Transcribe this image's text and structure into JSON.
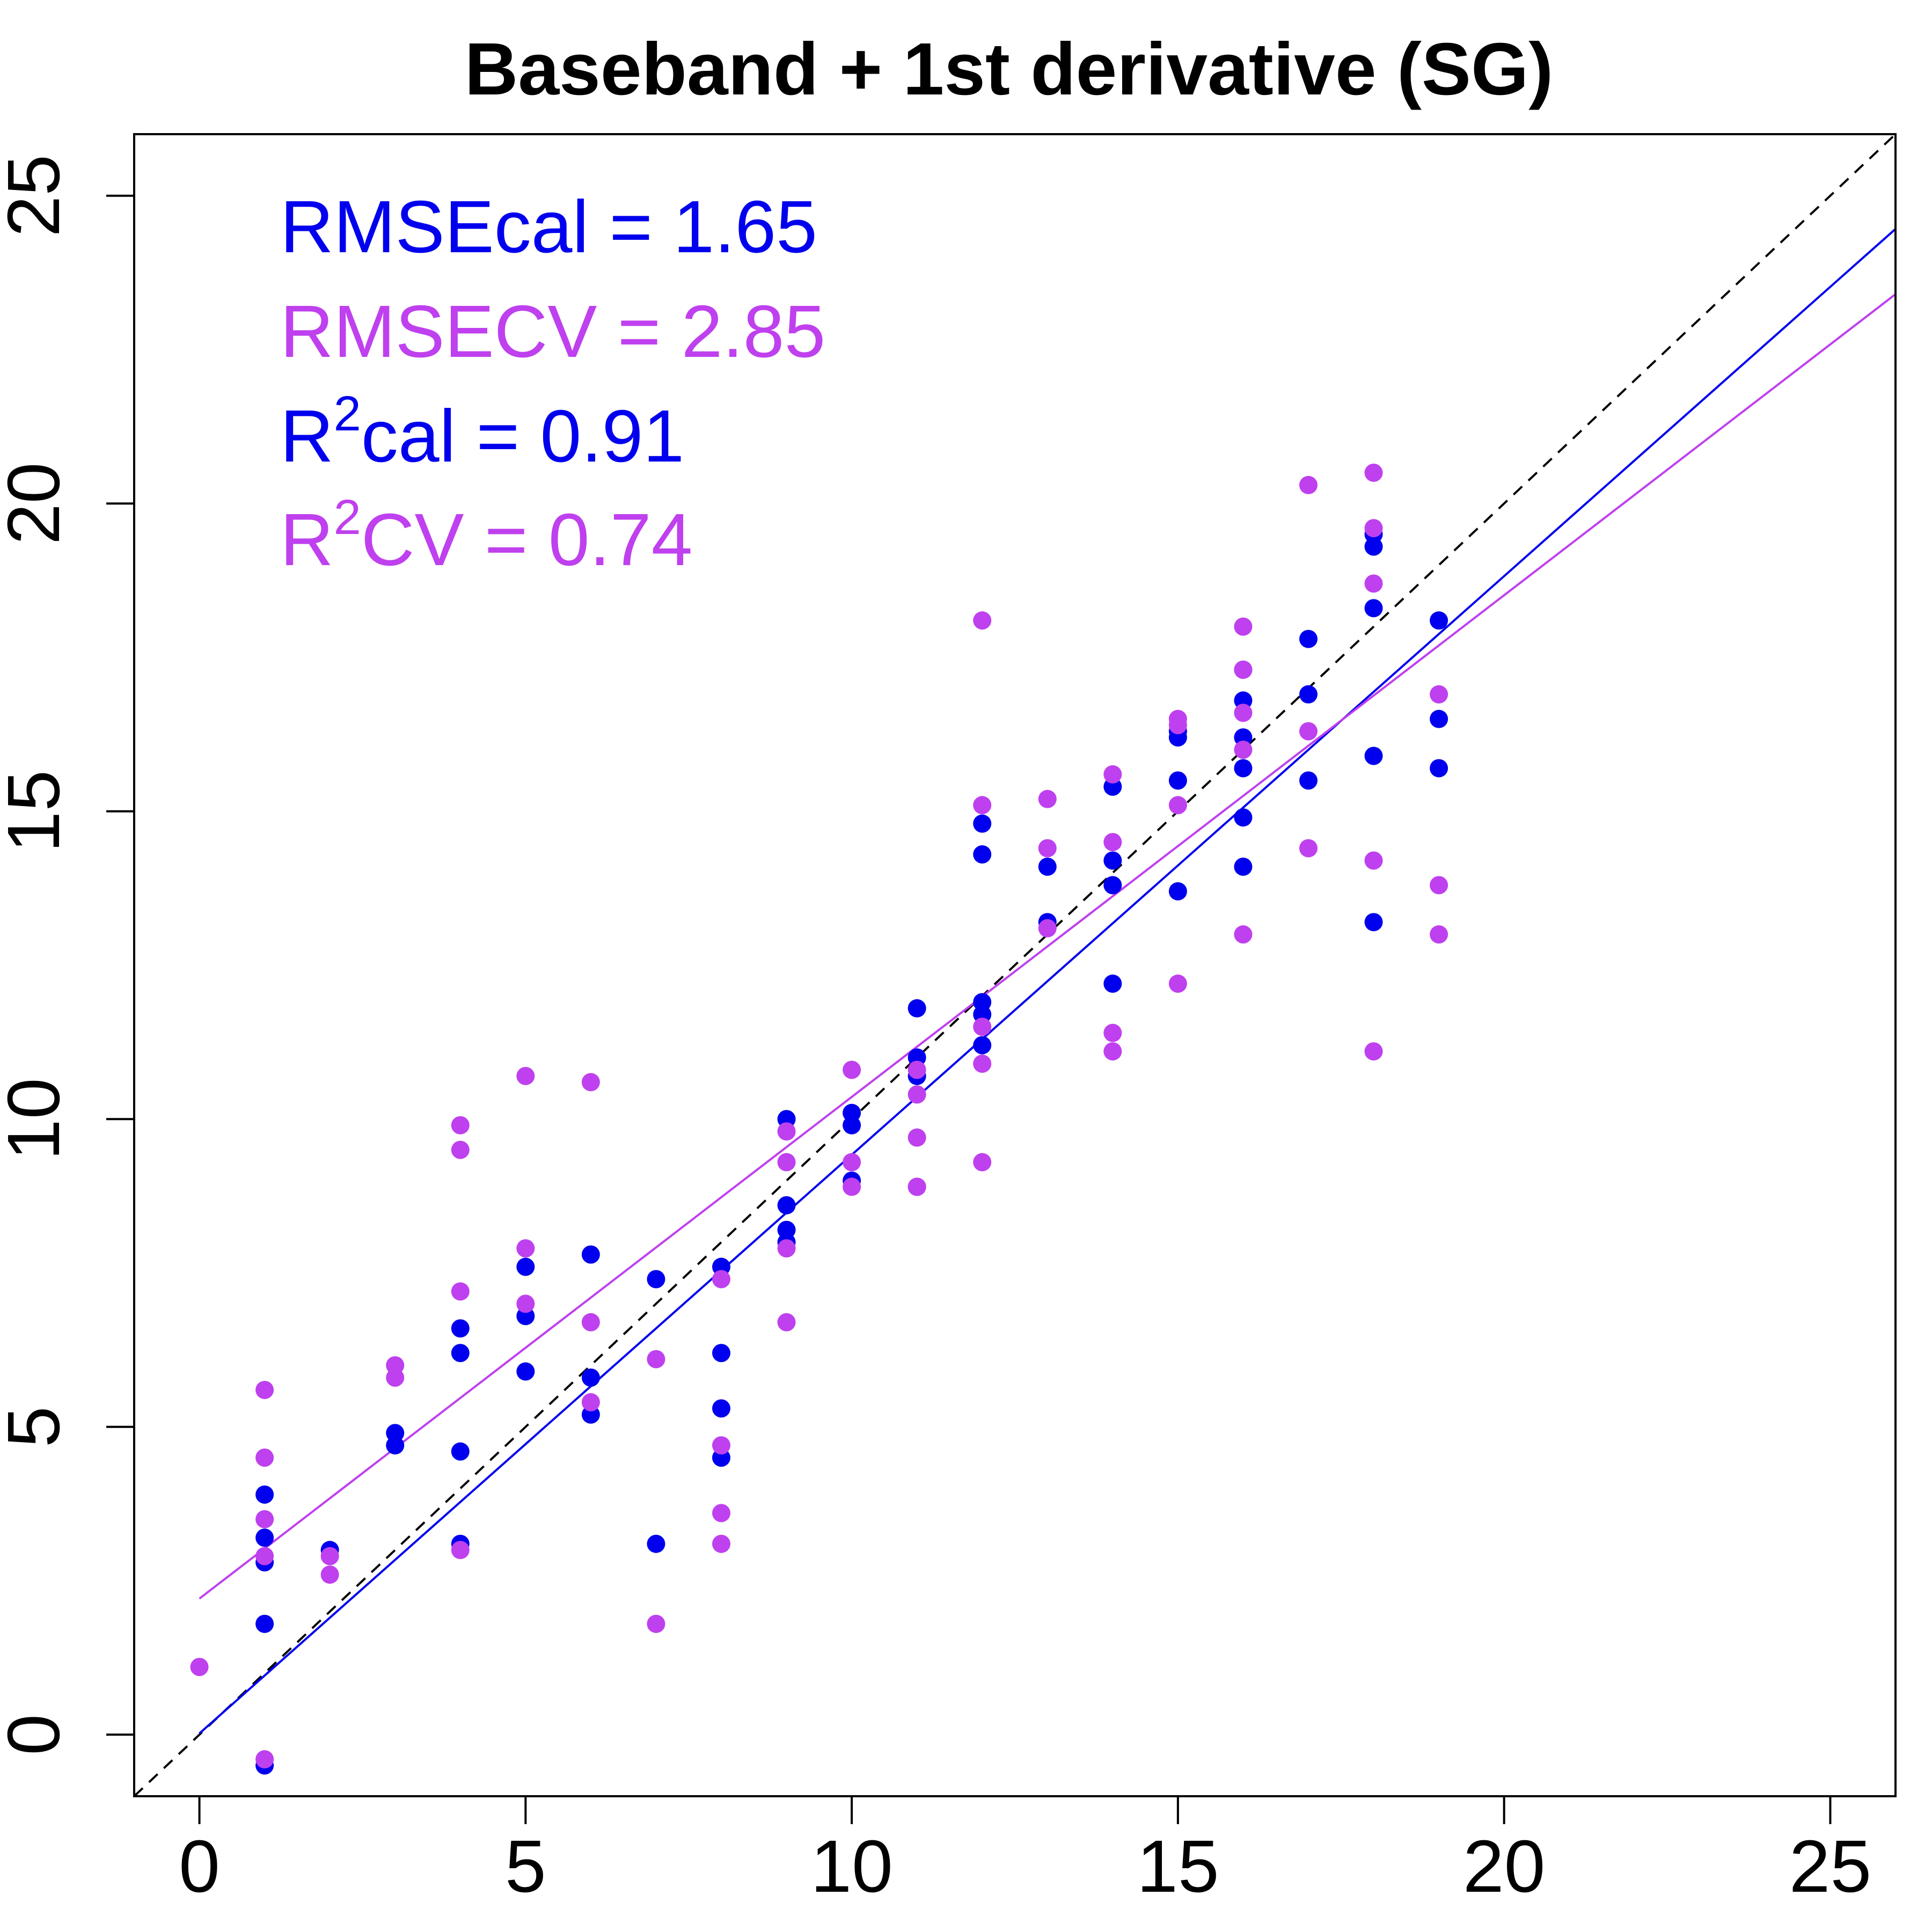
{
  "chart_data": {
    "type": "scatter",
    "title": "Baseband + 1st derivative (SG)",
    "xlabel": "",
    "ylabel": "",
    "xlim": [
      -1,
      26
    ],
    "ylim": [
      -1,
      26
    ],
    "xticks": [
      0,
      5,
      10,
      15,
      20,
      25
    ],
    "yticks": [
      0,
      5,
      10,
      15,
      20,
      25
    ],
    "x_tick_labels": [
      "0",
      "5",
      "10",
      "15",
      "20",
      "25"
    ],
    "y_tick_labels": [
      "0",
      "5",
      "10",
      "15",
      "20",
      "25"
    ],
    "grid": false,
    "colors": {
      "cal": "#0000EE",
      "cv": "#BF40EE",
      "identity": "#000000"
    },
    "stats": [
      {
        "id": "rmse-cal",
        "prefix": "RMSEcal = 1.65",
        "sup": "",
        "suffix": "",
        "series": "cal"
      },
      {
        "id": "rmse-cv",
        "prefix": "RMSECV = 2.85",
        "sup": "",
        "suffix": "",
        "series": "cv"
      },
      {
        "id": "r2-cal",
        "prefix": "R",
        "sup": "2",
        "suffix": "cal = 0.91",
        "series": "cal"
      },
      {
        "id": "r2-cv",
        "prefix": "R",
        "sup": "2",
        "suffix": "CV = 0.74",
        "series": "cv"
      }
    ],
    "reference_line": {
      "slope": 1,
      "intercept": 0,
      "style": "dashed"
    },
    "fit_lines": [
      {
        "series": "cal",
        "slope": 0.94,
        "intercept": 0.02
      },
      {
        "series": "cv",
        "slope": 0.815,
        "intercept": 2.21
      }
    ],
    "series": [
      {
        "id": "cal",
        "points": [
          [
            1,
            -0.5
          ],
          [
            1,
            1.8
          ],
          [
            1,
            2.8
          ],
          [
            1,
            3.2
          ],
          [
            1,
            3.9
          ],
          [
            2,
            3.0
          ],
          [
            3,
            4.7
          ],
          [
            3,
            4.9
          ],
          [
            4,
            3.1
          ],
          [
            4,
            4.6
          ],
          [
            4,
            6.2
          ],
          [
            4,
            6.6
          ],
          [
            5,
            5.9
          ],
          [
            5,
            6.8
          ],
          [
            5,
            7.6
          ],
          [
            6,
            5.2
          ],
          [
            6,
            5.8
          ],
          [
            6,
            7.8
          ],
          [
            7,
            3.1
          ],
          [
            7,
            7.4
          ],
          [
            8,
            4.5
          ],
          [
            8,
            5.3
          ],
          [
            8,
            6.2
          ],
          [
            8,
            7.6
          ],
          [
            9,
            8.0
          ],
          [
            9,
            8.2
          ],
          [
            9,
            8.6
          ],
          [
            9,
            10.0
          ],
          [
            10,
            9.0
          ],
          [
            10,
            9.9
          ],
          [
            10,
            10.1
          ],
          [
            11,
            8.9
          ],
          [
            11,
            10.7
          ],
          [
            11,
            11.0
          ],
          [
            11,
            11.8
          ],
          [
            12,
            11.2
          ],
          [
            12,
            11.7
          ],
          [
            12,
            11.9
          ],
          [
            12,
            14.3
          ],
          [
            12,
            14.8
          ],
          [
            13,
            13.2
          ],
          [
            13,
            14.1
          ],
          [
            14,
            12.2
          ],
          [
            14,
            13.8
          ],
          [
            14,
            14.2
          ],
          [
            14,
            15.4
          ],
          [
            15,
            13.7
          ],
          [
            15,
            15.5
          ],
          [
            15,
            16.2
          ],
          [
            15,
            16.3
          ],
          [
            16,
            14.1
          ],
          [
            16,
            14.9
          ],
          [
            16,
            15.7
          ],
          [
            16,
            16.2
          ],
          [
            16,
            16.8
          ],
          [
            16,
            17.3
          ],
          [
            17,
            15.5
          ],
          [
            17,
            16.9
          ],
          [
            17,
            17.8
          ],
          [
            18,
            13.2
          ],
          [
            18,
            15.9
          ],
          [
            18,
            18.3
          ],
          [
            18,
            19.3
          ],
          [
            18,
            19.5
          ],
          [
            19,
            15.7
          ],
          [
            19,
            16.5
          ],
          [
            19,
            18.1
          ]
        ]
      },
      {
        "id": "cv",
        "points": [
          [
            0,
            1.1
          ],
          [
            1,
            -0.4
          ],
          [
            1,
            2.9
          ],
          [
            1,
            3.5
          ],
          [
            1,
            4.5
          ],
          [
            1,
            5.6
          ],
          [
            2,
            2.6
          ],
          [
            2,
            2.9
          ],
          [
            3,
            5.8
          ],
          [
            3,
            6.0
          ],
          [
            4,
            3.0
          ],
          [
            4,
            7.2
          ],
          [
            4,
            9.5
          ],
          [
            4,
            9.9
          ],
          [
            5,
            7.0
          ],
          [
            5,
            7.9
          ],
          [
            5,
            10.7
          ],
          [
            6,
            5.4
          ],
          [
            6,
            6.7
          ],
          [
            6,
            10.6
          ],
          [
            7,
            1.8
          ],
          [
            7,
            6.1
          ],
          [
            8,
            3.1
          ],
          [
            8,
            3.6
          ],
          [
            8,
            4.7
          ],
          [
            8,
            7.4
          ],
          [
            9,
            6.7
          ],
          [
            9,
            7.9
          ],
          [
            9,
            9.3
          ],
          [
            9,
            9.8
          ],
          [
            10,
            8.9
          ],
          [
            10,
            9.3
          ],
          [
            10,
            10.8
          ],
          [
            11,
            8.9
          ],
          [
            11,
            9.7
          ],
          [
            11,
            10.4
          ],
          [
            11,
            10.8
          ],
          [
            12,
            9.3
          ],
          [
            12,
            10.9
          ],
          [
            12,
            11.5
          ],
          [
            12,
            15.1
          ],
          [
            12,
            18.1
          ],
          [
            13,
            13.1
          ],
          [
            13,
            14.4
          ],
          [
            13,
            15.2
          ],
          [
            14,
            11.1
          ],
          [
            14,
            11.4
          ],
          [
            14,
            14.5
          ],
          [
            14,
            15.6
          ],
          [
            15,
            12.2
          ],
          [
            15,
            15.1
          ],
          [
            15,
            16.4
          ],
          [
            15,
            16.5
          ],
          [
            16,
            13.0
          ],
          [
            16,
            16.0
          ],
          [
            16,
            16.6
          ],
          [
            16,
            17.3
          ],
          [
            16,
            18.0
          ],
          [
            17,
            14.4
          ],
          [
            17,
            16.3
          ],
          [
            17,
            20.3
          ],
          [
            18,
            11.1
          ],
          [
            18,
            14.2
          ],
          [
            18,
            18.7
          ],
          [
            18,
            19.6
          ],
          [
            18,
            20.5
          ],
          [
            19,
            13.0
          ],
          [
            19,
            13.8
          ],
          [
            19,
            16.9
          ]
        ]
      }
    ]
  }
}
